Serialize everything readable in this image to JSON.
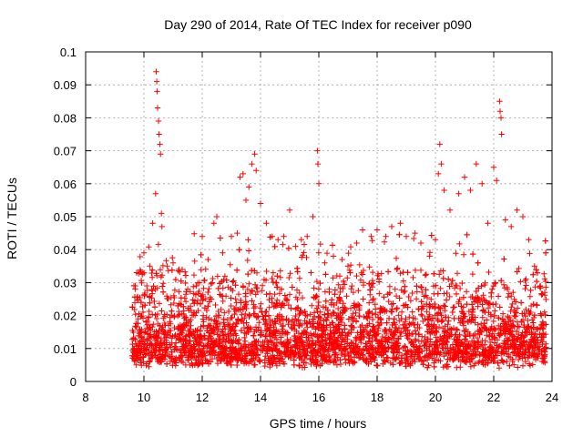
{
  "chart_data": {
    "type": "scatter",
    "title": "Day 290 of 2014, Rate Of TEC Index for receiver p090",
    "xlabel": "GPS time / hours",
    "ylabel": "ROTI / TECUs",
    "xlim": [
      8,
      24
    ],
    "ylim": [
      0,
      0.1
    ],
    "xticks": [
      8,
      10,
      12,
      14,
      16,
      18,
      20,
      22,
      24
    ],
    "yticks": [
      0,
      0.01,
      0.02,
      0.03,
      0.04,
      0.05,
      0.06,
      0.07,
      0.08,
      0.09,
      0.1
    ],
    "ytick_labels": [
      "0",
      "0.01",
      "0.02",
      "0.03",
      "0.04",
      "0.05",
      "0.06",
      "0.07",
      "0.08",
      "0.09",
      "0.1"
    ],
    "grid": true,
    "marker": "+",
    "series_color": "#ff0000",
    "x_range_of_data": [
      9.6,
      23.8
    ],
    "series": [
      {
        "name": "ROTI",
        "points": [
          [
            9.7,
            0.028
          ],
          [
            9.75,
            0.033
          ],
          [
            9.8,
            0.019
          ],
          [
            9.9,
            0.024
          ],
          [
            10.0,
            0.039
          ],
          [
            10.1,
            0.029
          ],
          [
            10.2,
            0.035
          ],
          [
            10.3,
            0.048
          ],
          [
            10.4,
            0.057
          ],
          [
            10.42,
            0.094
          ],
          [
            10.44,
            0.091
          ],
          [
            10.45,
            0.088
          ],
          [
            10.47,
            0.083
          ],
          [
            10.5,
            0.079
          ],
          [
            10.52,
            0.075
          ],
          [
            10.55,
            0.072
          ],
          [
            10.57,
            0.069
          ],
          [
            10.6,
            0.051
          ],
          [
            10.62,
            0.047
          ],
          [
            10.8,
            0.035
          ],
          [
            11.0,
            0.036
          ],
          [
            11.2,
            0.034
          ],
          [
            11.5,
            0.028
          ],
          [
            11.8,
            0.029
          ],
          [
            12.0,
            0.044
          ],
          [
            12.2,
            0.037
          ],
          [
            12.4,
            0.048
          ],
          [
            12.5,
            0.05
          ],
          [
            12.7,
            0.039
          ],
          [
            13.0,
            0.044
          ],
          [
            13.2,
            0.045
          ],
          [
            13.3,
            0.062
          ],
          [
            13.4,
            0.063
          ],
          [
            13.5,
            0.055
          ],
          [
            13.6,
            0.059
          ],
          [
            13.7,
            0.066
          ],
          [
            13.8,
            0.069
          ],
          [
            13.85,
            0.064
          ],
          [
            14.0,
            0.054
          ],
          [
            14.2,
            0.048
          ],
          [
            14.4,
            0.044
          ],
          [
            14.6,
            0.043
          ],
          [
            14.8,
            0.044
          ],
          [
            15.0,
            0.052
          ],
          [
            15.2,
            0.041
          ],
          [
            15.4,
            0.043
          ],
          [
            15.6,
            0.044
          ],
          [
            15.8,
            0.05
          ],
          [
            15.95,
            0.07
          ],
          [
            15.97,
            0.066
          ],
          [
            16.0,
            0.06
          ],
          [
            16.2,
            0.036
          ],
          [
            16.5,
            0.038
          ],
          [
            16.8,
            0.037
          ],
          [
            17.0,
            0.035
          ],
          [
            17.3,
            0.042
          ],
          [
            17.5,
            0.046
          ],
          [
            17.8,
            0.044
          ],
          [
            18.0,
            0.046
          ],
          [
            18.3,
            0.044
          ],
          [
            18.5,
            0.047
          ],
          [
            18.8,
            0.048
          ],
          [
            19.0,
            0.044
          ],
          [
            19.3,
            0.045
          ],
          [
            19.5,
            0.042
          ],
          [
            19.8,
            0.038
          ],
          [
            20.0,
            0.043
          ],
          [
            20.1,
            0.063
          ],
          [
            20.15,
            0.072
          ],
          [
            20.2,
            0.066
          ],
          [
            20.3,
            0.058
          ],
          [
            20.5,
            0.052
          ],
          [
            20.8,
            0.057
          ],
          [
            21.0,
            0.062
          ],
          [
            21.2,
            0.058
          ],
          [
            21.4,
            0.066
          ],
          [
            21.6,
            0.06
          ],
          [
            21.8,
            0.048
          ],
          [
            22.0,
            0.065
          ],
          [
            22.1,
            0.061
          ],
          [
            22.2,
            0.085
          ],
          [
            22.22,
            0.082
          ],
          [
            22.25,
            0.08
          ],
          [
            22.27,
            0.075
          ],
          [
            22.4,
            0.049
          ],
          [
            22.6,
            0.047
          ],
          [
            22.8,
            0.052
          ],
          [
            23.0,
            0.05
          ],
          [
            23.2,
            0.043
          ],
          [
            23.4,
            0.035
          ],
          [
            23.6,
            0.029
          ],
          [
            23.75,
            0.027
          ]
        ]
      }
    ]
  }
}
